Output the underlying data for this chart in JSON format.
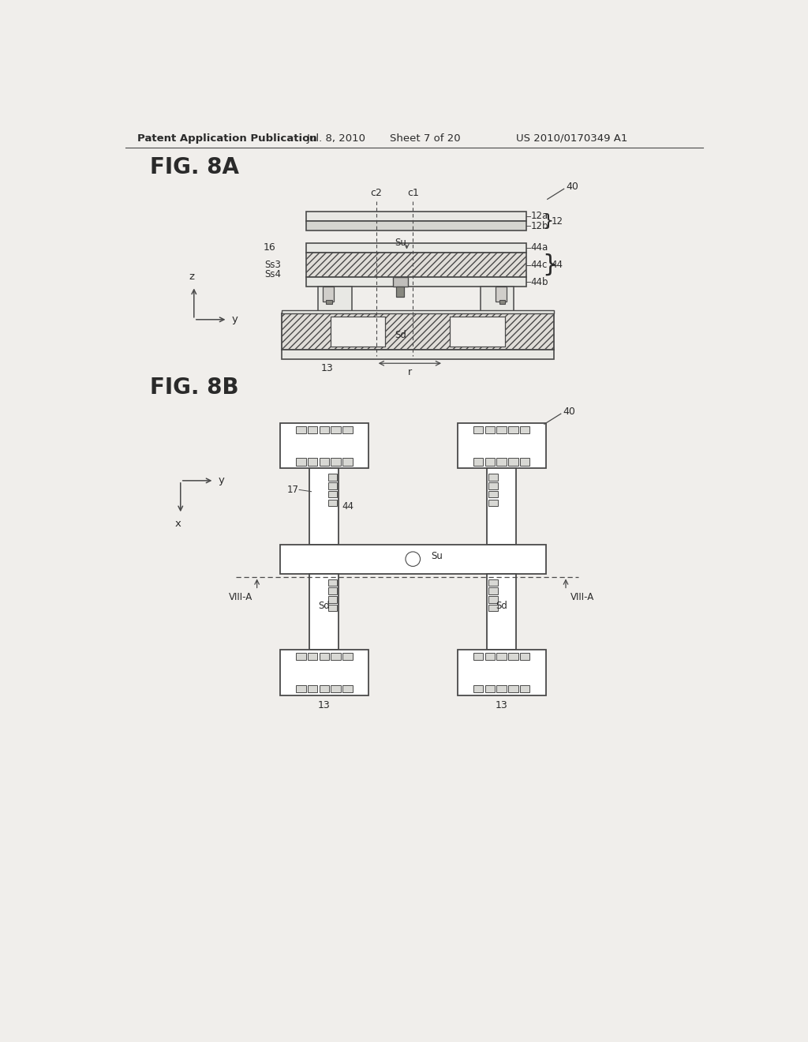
{
  "bg_color": "#f0eeeb",
  "header_text": "Patent Application Publication",
  "header_date": "Jul. 8, 2010",
  "header_sheet": "Sheet 7 of 20",
  "header_patent": "US 2010/0170349 A1",
  "fig8a_label": "FIG. 8A",
  "fig8b_label": "FIG. 8B",
  "line_color": "#4a4a4a",
  "text_color": "#2a2a2a"
}
